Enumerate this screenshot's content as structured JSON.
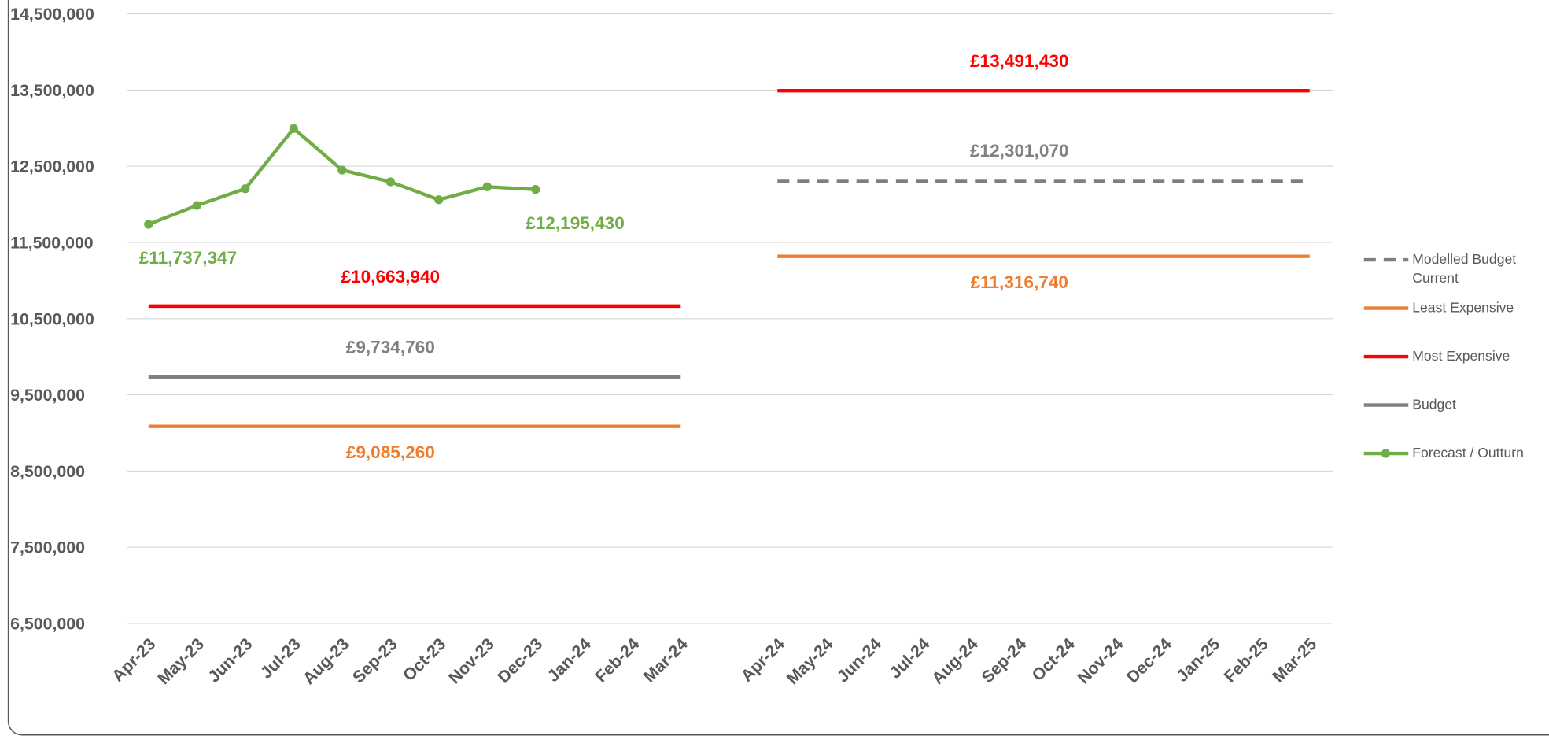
{
  "chart_data": {
    "type": "line",
    "categories": [
      "Apr-23",
      "May-23",
      "Jun-23",
      "Jul-23",
      "Aug-23",
      "Sep-23",
      "Oct-23",
      "Nov-23",
      "Dec-23",
      "Jan-24",
      "Feb-24",
      "Mar-24",
      null,
      "Apr-24",
      "May-24",
      "Jun-24",
      "Jul-24",
      "Aug-24",
      "Sep-24",
      "Oct-24",
      "Nov-24",
      "Dec-24",
      "Jan-25",
      "Feb-25",
      "Mar-25"
    ],
    "ylim": [
      6500000,
      14500000
    ],
    "yticks": [
      {
        "value": 6500000,
        "label": "6,500,000"
      },
      {
        "value": 7500000,
        "label": "7,500,000"
      },
      {
        "value": 8500000,
        "label": "8,500,000"
      },
      {
        "value": 9500000,
        "label": "9,500,000"
      },
      {
        "value": 10500000,
        "label": "10,500,000"
      },
      {
        "value": 11500000,
        "label": "11,500,000"
      },
      {
        "value": 12500000,
        "label": "12,500,000"
      },
      {
        "value": 13500000,
        "label": "13,500,000"
      },
      {
        "value": 14500000,
        "label": "14,500,000"
      }
    ],
    "grid": true,
    "legend": "right",
    "series": [
      {
        "name": "Modelled Budget Current",
        "color": "#7f7f7f",
        "dashed": true,
        "values": [
          null,
          null,
          null,
          null,
          null,
          null,
          null,
          null,
          null,
          null,
          null,
          null,
          null,
          12301070,
          12301070,
          12301070,
          12301070,
          12301070,
          12301070,
          12301070,
          12301070,
          12301070,
          12301070,
          12301070,
          12301070
        ],
        "value_labels": [
          null,
          null,
          null,
          null,
          null,
          null,
          null,
          null,
          null,
          null,
          null,
          null,
          null,
          null,
          null,
          null,
          null,
          null,
          "£12,301,070",
          null,
          null,
          null,
          null,
          null,
          null
        ]
      },
      {
        "name": "Least Expensive",
        "color": "#ed7d31",
        "values": [
          9085260,
          9085260,
          9085260,
          9085260,
          9085260,
          9085260,
          9085260,
          9085260,
          9085260,
          9085260,
          9085260,
          9085260,
          null,
          11316740,
          11316740,
          11316740,
          11316740,
          11316740,
          11316740,
          11316740,
          11316740,
          11316740,
          11316740,
          11316740,
          11316740
        ],
        "value_labels": [
          null,
          null,
          null,
          null,
          null,
          "£9,085,260",
          null,
          null,
          null,
          null,
          null,
          null,
          null,
          null,
          null,
          null,
          null,
          null,
          "£11,316,740",
          null,
          null,
          null,
          null,
          null,
          null
        ]
      },
      {
        "name": "Most Expensive",
        "color": "#ff0000",
        "values": [
          10663940,
          10663940,
          10663940,
          10663940,
          10663940,
          10663940,
          10663940,
          10663940,
          10663940,
          10663940,
          10663940,
          10663940,
          null,
          13491430,
          13491430,
          13491430,
          13491430,
          13491430,
          13491430,
          13491430,
          13491430,
          13491430,
          13491430,
          13491430,
          13491430
        ],
        "value_labels": [
          null,
          null,
          null,
          null,
          null,
          "£10,663,940",
          null,
          null,
          null,
          null,
          null,
          null,
          null,
          null,
          null,
          null,
          null,
          null,
          "£13,491,430",
          null,
          null,
          null,
          null,
          null,
          null
        ]
      },
      {
        "name": "Budget",
        "color": "#7f7f7f",
        "values": [
          9734760,
          9734760,
          9734760,
          9734760,
          9734760,
          9734760,
          9734760,
          9734760,
          9734760,
          9734760,
          9734760,
          9734760,
          null,
          null,
          null,
          null,
          null,
          null,
          null,
          null,
          null,
          null,
          null,
          null,
          null
        ],
        "value_labels": [
          null,
          null,
          null,
          null,
          null,
          "£9,734,760",
          null,
          null,
          null,
          null,
          null,
          null,
          null,
          null,
          null,
          null,
          null,
          null,
          null,
          null,
          null,
          null,
          null,
          null,
          null
        ]
      },
      {
        "name": "Forecast / Outturn",
        "color": "#70ad47",
        "markers": true,
        "values": [
          11737347,
          11985000,
          12205000,
          12995000,
          12450000,
          12295000,
          12060000,
          12230000,
          12195430,
          null,
          null,
          null,
          null,
          null,
          null,
          null,
          null,
          null,
          null,
          null,
          null,
          null,
          null,
          null,
          null
        ],
        "value_labels": [
          "£11,737,347",
          null,
          null,
          null,
          null,
          null,
          null,
          null,
          "£12,195,430",
          null,
          null,
          null,
          null,
          null,
          null,
          null,
          null,
          null,
          null,
          null,
          null,
          null,
          null,
          null,
          null
        ]
      }
    ]
  }
}
